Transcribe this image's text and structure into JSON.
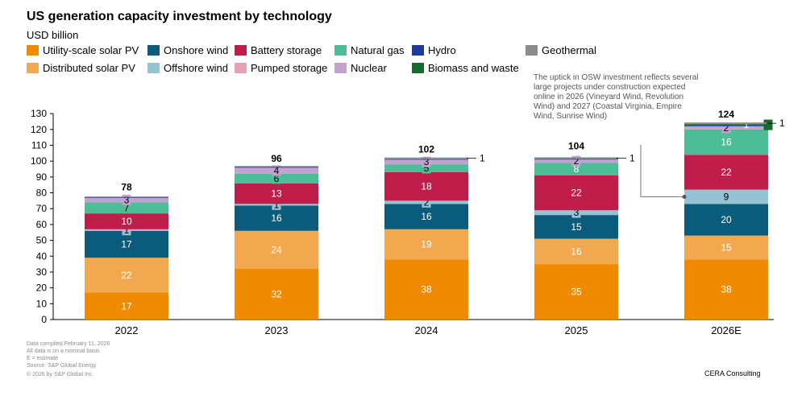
{
  "header": {
    "title": "US generation capacity investment by technology",
    "unit": "USD billion"
  },
  "annotation": "The uptick in OSW investment reflects several large projects under construction expected online in 2026 (Vineyard Wind, Revolution Wind) and 2027 (Coastal Virginia, Empire Wind, Sunrise Wind)",
  "footer": {
    "notes": [
      "Data compiled February 11, 2026",
      "All data is on a nominal basis",
      "E = estimate",
      "Source: S&P Global Energy"
    ],
    "copyright": "© 2026 by S&P Global Inc.",
    "brand": "CERA Consulting"
  },
  "legend": [
    {
      "name": "Utility-scale solar PV",
      "color": "#F08A00"
    },
    {
      "name": "Distributed solar PV",
      "color": "#F2A84E"
    },
    {
      "name": "Onshore wind",
      "color": "#0B5C7C"
    },
    {
      "name": "Offshore wind",
      "color": "#96C3D3"
    },
    {
      "name": "Battery storage",
      "color": "#BF1E4B"
    },
    {
      "name": "Pumped storage",
      "color": "#E8A1B2"
    },
    {
      "name": "Natural gas",
      "color": "#4DBD98"
    },
    {
      "name": "Nuclear",
      "color": "#C4A2D0"
    },
    {
      "name": "Hydro",
      "color": "#1F3A9E"
    },
    {
      "name": "Biomass and waste",
      "color": "#146B2E"
    },
    {
      "name": "Geothermal",
      "color": "#8C8C8C"
    }
  ],
  "chart_data": {
    "type": "bar",
    "stacked": true,
    "categories": [
      "2022",
      "2023",
      "2024",
      "2025",
      "2026E"
    ],
    "totals": [
      78,
      96,
      102,
      104,
      124
    ],
    "ylim": [
      0,
      130
    ],
    "yticks": [
      0,
      10,
      20,
      30,
      40,
      50,
      60,
      70,
      80,
      90,
      100,
      110,
      120,
      130
    ],
    "series": [
      {
        "name": "Utility-scale solar PV",
        "color": "#F08A00",
        "values": [
          17,
          32,
          38,
          35,
          38
        ],
        "labels": [
          "17",
          "32",
          "38",
          "35",
          "38"
        ]
      },
      {
        "name": "Distributed solar PV",
        "color": "#F2A84E",
        "values": [
          22,
          24,
          19,
          16,
          15
        ],
        "labels": [
          "22",
          "24",
          "19",
          "16",
          "15"
        ]
      },
      {
        "name": "Onshore wind",
        "color": "#0B5C7C",
        "values": [
          17,
          16,
          16,
          15,
          20
        ],
        "labels": [
          "17",
          "16",
          "16",
          "15",
          "20"
        ]
      },
      {
        "name": "Offshore wind",
        "color": "#96C3D3",
        "values": [
          1,
          1,
          2,
          3,
          9
        ],
        "labels": [
          "1",
          "1",
          "2",
          "3",
          "9"
        ]
      },
      {
        "name": "Battery storage",
        "color": "#BF1E4B",
        "values": [
          10,
          13,
          18,
          22,
          22
        ],
        "labels": [
          "10",
          "13",
          "18",
          "22",
          "22"
        ]
      },
      {
        "name": "Pumped storage",
        "color": "#E8A1B2",
        "values": [
          0,
          0,
          0,
          0,
          0
        ],
        "labels": [
          "",
          "",
          "",
          "",
          ""
        ]
      },
      {
        "name": "Natural gas",
        "color": "#4DBD98",
        "values": [
          7,
          6,
          5,
          8,
          16
        ],
        "labels": [
          "7",
          "6",
          "5",
          "8",
          "16"
        ]
      },
      {
        "name": "Nuclear",
        "color": "#C4A2D0",
        "values": [
          3,
          4,
          3,
          2,
          2
        ],
        "labels": [
          "3",
          "4",
          "3",
          "2",
          "2"
        ]
      },
      {
        "name": "Hydro",
        "color": "#1F3A9E",
        "values": [
          0.3,
          0.3,
          0.3,
          0.4,
          0.4
        ],
        "labels": [
          "",
          "",
          "",
          "",
          ""
        ]
      },
      {
        "name": "Biomass and waste",
        "color": "#146B2E",
        "values": [
          0,
          0,
          0,
          0,
          1
        ],
        "labels": [
          "",
          "",
          "",
          "",
          "1"
        ]
      },
      {
        "name": "Geothermal",
        "color": "#8C8C8C",
        "values": [
          0.4,
          0.6,
          1,
          1,
          1
        ],
        "labels": [
          "",
          "",
          "1",
          "1",
          "1"
        ]
      }
    ]
  }
}
